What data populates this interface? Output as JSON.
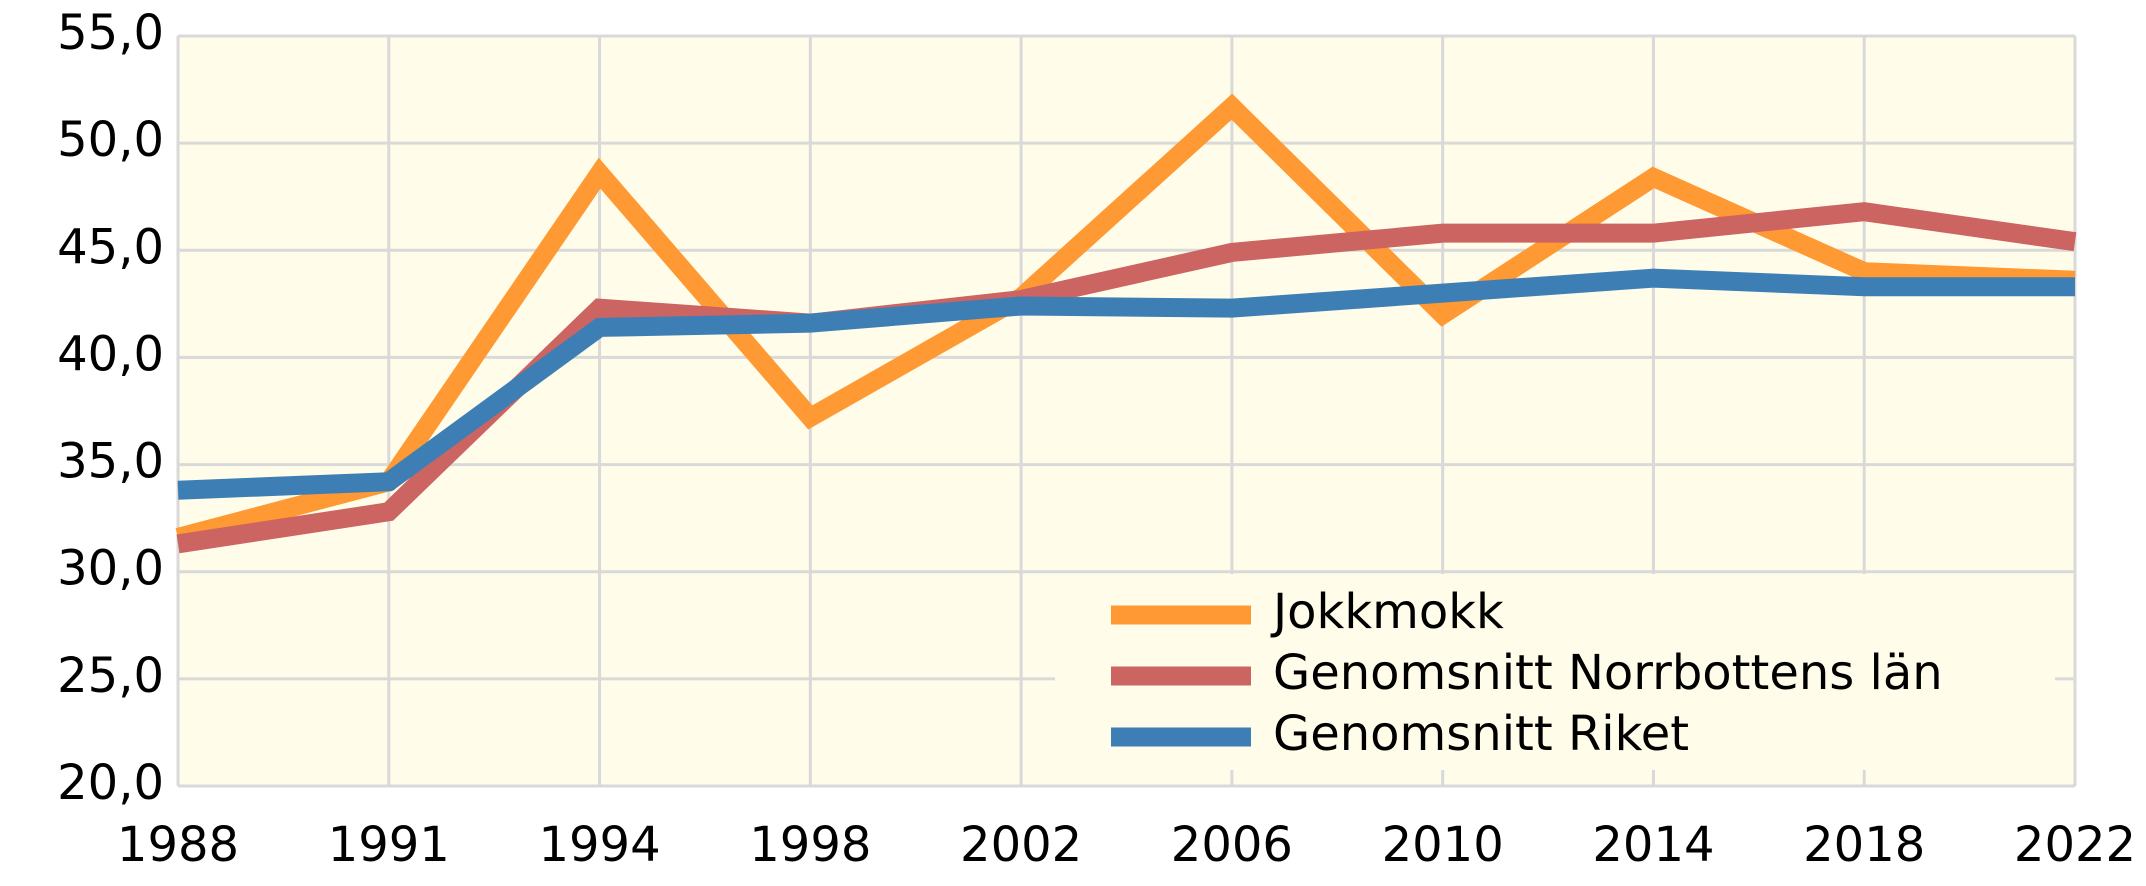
{
  "chart_data": {
    "type": "line",
    "categories": [
      "1988",
      "1991",
      "1994",
      "1998",
      "2002",
      "2006",
      "2010",
      "2014",
      "2018",
      "2022"
    ],
    "series": [
      {
        "name": "Jokkmokk",
        "color": "#ff9933",
        "values": [
          31.6,
          34.2,
          48.6,
          37.2,
          42.8,
          51.7,
          42.0,
          48.4,
          44.0,
          43.6
        ]
      },
      {
        "name": "Genomsnitt Norrbottens län",
        "color": "#cc6462",
        "values": [
          31.3,
          32.8,
          42.3,
          41.6,
          42.7,
          44.9,
          45.8,
          45.8,
          46.8,
          45.4
        ]
      },
      {
        "name": "Genomsnitt Riket",
        "color": "#3d7fb5",
        "values": [
          33.8,
          34.2,
          41.4,
          41.6,
          42.4,
          42.3,
          43.0,
          43.7,
          43.3,
          43.3
        ]
      }
    ],
    "ylim": [
      20,
      55
    ],
    "yticks": [
      {
        "value": 20,
        "label": "20,0"
      },
      {
        "value": 25,
        "label": "25,0"
      },
      {
        "value": 30,
        "label": "30,0"
      },
      {
        "value": 35,
        "label": "35,0"
      },
      {
        "value": 40,
        "label": "40,0"
      },
      {
        "value": 45,
        "label": "45,0"
      },
      {
        "value": 50,
        "label": "50,0"
      },
      {
        "value": 55,
        "label": "55,0"
      }
    ],
    "grid": true,
    "legend": "lower right"
  }
}
